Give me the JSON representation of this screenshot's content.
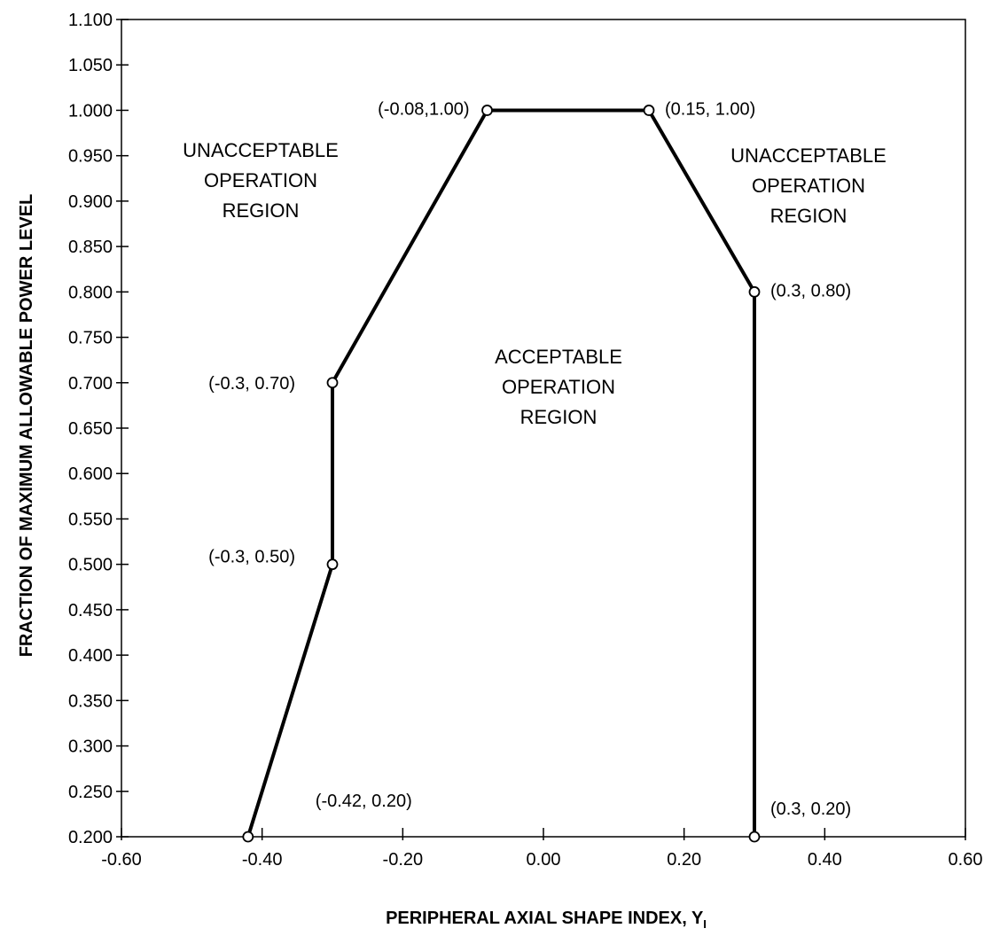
{
  "chart_data": {
    "type": "line",
    "xlabel": "PERIPHERAL AXIAL SHAPE INDEX, Y",
    "xlabel_subscript": "I",
    "ylabel": "FRACTION OF MAXIMUM ALLOWABLE POWER LEVEL",
    "xlim": [
      -0.6,
      0.6
    ],
    "ylim": [
      0.2,
      1.1
    ],
    "x_ticks": [
      -0.6,
      -0.4,
      -0.2,
      0.0,
      0.2,
      0.4,
      0.6
    ],
    "x_tick_labels": [
      "-0.60",
      "-0.40",
      "-0.20",
      "0.00",
      "0.20",
      "0.40",
      "0.60"
    ],
    "y_ticks": [
      0.2,
      0.25,
      0.3,
      0.35,
      0.4,
      0.45,
      0.5,
      0.55,
      0.6,
      0.65,
      0.7,
      0.75,
      0.8,
      0.85,
      0.9,
      0.95,
      1.0,
      1.05,
      1.1
    ],
    "y_tick_labels": [
      "0.200",
      "0.250",
      "0.300",
      "0.350",
      "0.400",
      "0.450",
      "0.500",
      "0.550",
      "0.600",
      "0.650",
      "0.700",
      "0.750",
      "0.800",
      "0.850",
      "0.900",
      "0.950",
      "1.000",
      "1.050",
      "1.100"
    ],
    "grid": false,
    "series": [
      {
        "points": [
          {
            "x": -0.42,
            "y": 0.2,
            "label": "(-0.42, 0.20)"
          },
          {
            "x": -0.3,
            "y": 0.5,
            "label": "(-0.3, 0.50)"
          },
          {
            "x": -0.3,
            "y": 0.7,
            "label": "(-0.3, 0.70)"
          },
          {
            "x": -0.08,
            "y": 1.0,
            "label": "(-0.08,1.00)"
          },
          {
            "x": 0.15,
            "y": 1.0,
            "label": "(0.15, 1.00)"
          },
          {
            "x": 0.3,
            "y": 0.8,
            "label": "(0.3, 0.80)"
          },
          {
            "x": 0.3,
            "y": 0.2,
            "label": "(0.3, 0.20)"
          }
        ]
      }
    ],
    "annotations": {
      "unacceptable_left": [
        "UNACCEPTABLE",
        "OPERATION",
        "REGION"
      ],
      "unacceptable_right": [
        "UNACCEPTABLE",
        "OPERATION",
        "REGION"
      ],
      "acceptable": [
        "ACCEPTABLE",
        "OPERATION",
        "REGION"
      ]
    }
  }
}
